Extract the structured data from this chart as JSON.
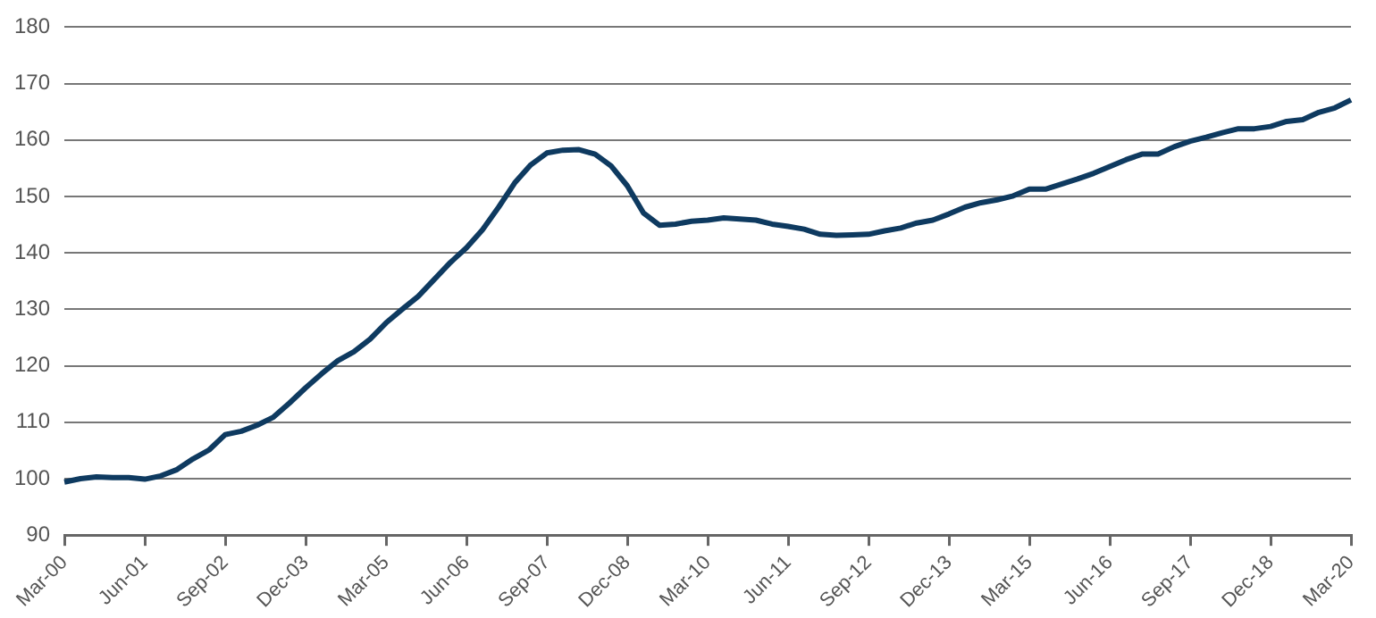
{
  "chart_data": {
    "type": "line",
    "categories": [
      "Mar-00",
      null,
      null,
      null,
      null,
      "Jun-01",
      null,
      null,
      null,
      null,
      "Sep-02",
      null,
      null,
      null,
      null,
      "Dec-03",
      null,
      null,
      null,
      null,
      "Mar-05",
      null,
      null,
      null,
      null,
      "Jun-06",
      null,
      null,
      null,
      null,
      "Sep-07",
      null,
      null,
      null,
      null,
      "Dec-08",
      null,
      null,
      null,
      null,
      "Mar-10",
      null,
      null,
      null,
      null,
      "Jun-11",
      null,
      null,
      null,
      null,
      "Sep-12",
      null,
      null,
      null,
      null,
      "Dec-13",
      null,
      null,
      null,
      null,
      "Mar-15",
      null,
      null,
      null,
      null,
      "Jun-16",
      null,
      null,
      null,
      null,
      "Sep-17",
      null,
      null,
      null,
      null,
      "Dec-18",
      null,
      null,
      null,
      null,
      "Mar-20"
    ],
    "series": [
      {
        "color": "#0e3a60",
        "values": [
          99.4,
          100,
          100.3,
          100.2,
          100.2,
          99.9,
          100.5,
          101.6,
          103.5,
          105.1,
          107.8,
          108.4,
          109.5,
          110.9,
          113.4,
          116.1,
          118.6,
          120.9,
          122.5,
          124.7,
          127.6,
          130,
          132.3,
          135.3,
          138.3,
          140.9,
          144.1,
          148.1,
          152.4,
          155.6,
          157.7,
          158.2,
          158.3,
          157.5,
          155.4,
          151.9,
          147.1,
          144.9,
          145.1,
          145.6,
          145.8,
          146.2,
          146,
          145.8,
          145.1,
          144.7,
          144.2,
          143.3,
          143.1,
          143.2,
          143.3,
          143.9,
          144.4,
          145.3,
          145.8,
          146.9,
          148.1,
          148.9,
          149.4,
          150.1,
          151.3,
          151.3,
          152.2,
          153.1,
          154.1,
          155.3,
          156.5,
          157.5,
          157.5,
          158.8,
          159.8,
          160.5,
          161.3,
          162,
          162,
          162.4,
          163.3,
          163.6,
          164.9,
          165.7,
          167.1
        ]
      }
    ],
    "ylim": [
      90,
      180
    ],
    "yticks": [
      90,
      100,
      110,
      120,
      130,
      140,
      150,
      160,
      170,
      180
    ],
    "grid": "y",
    "legend": false,
    "marker": "none",
    "line_style": "solid"
  }
}
